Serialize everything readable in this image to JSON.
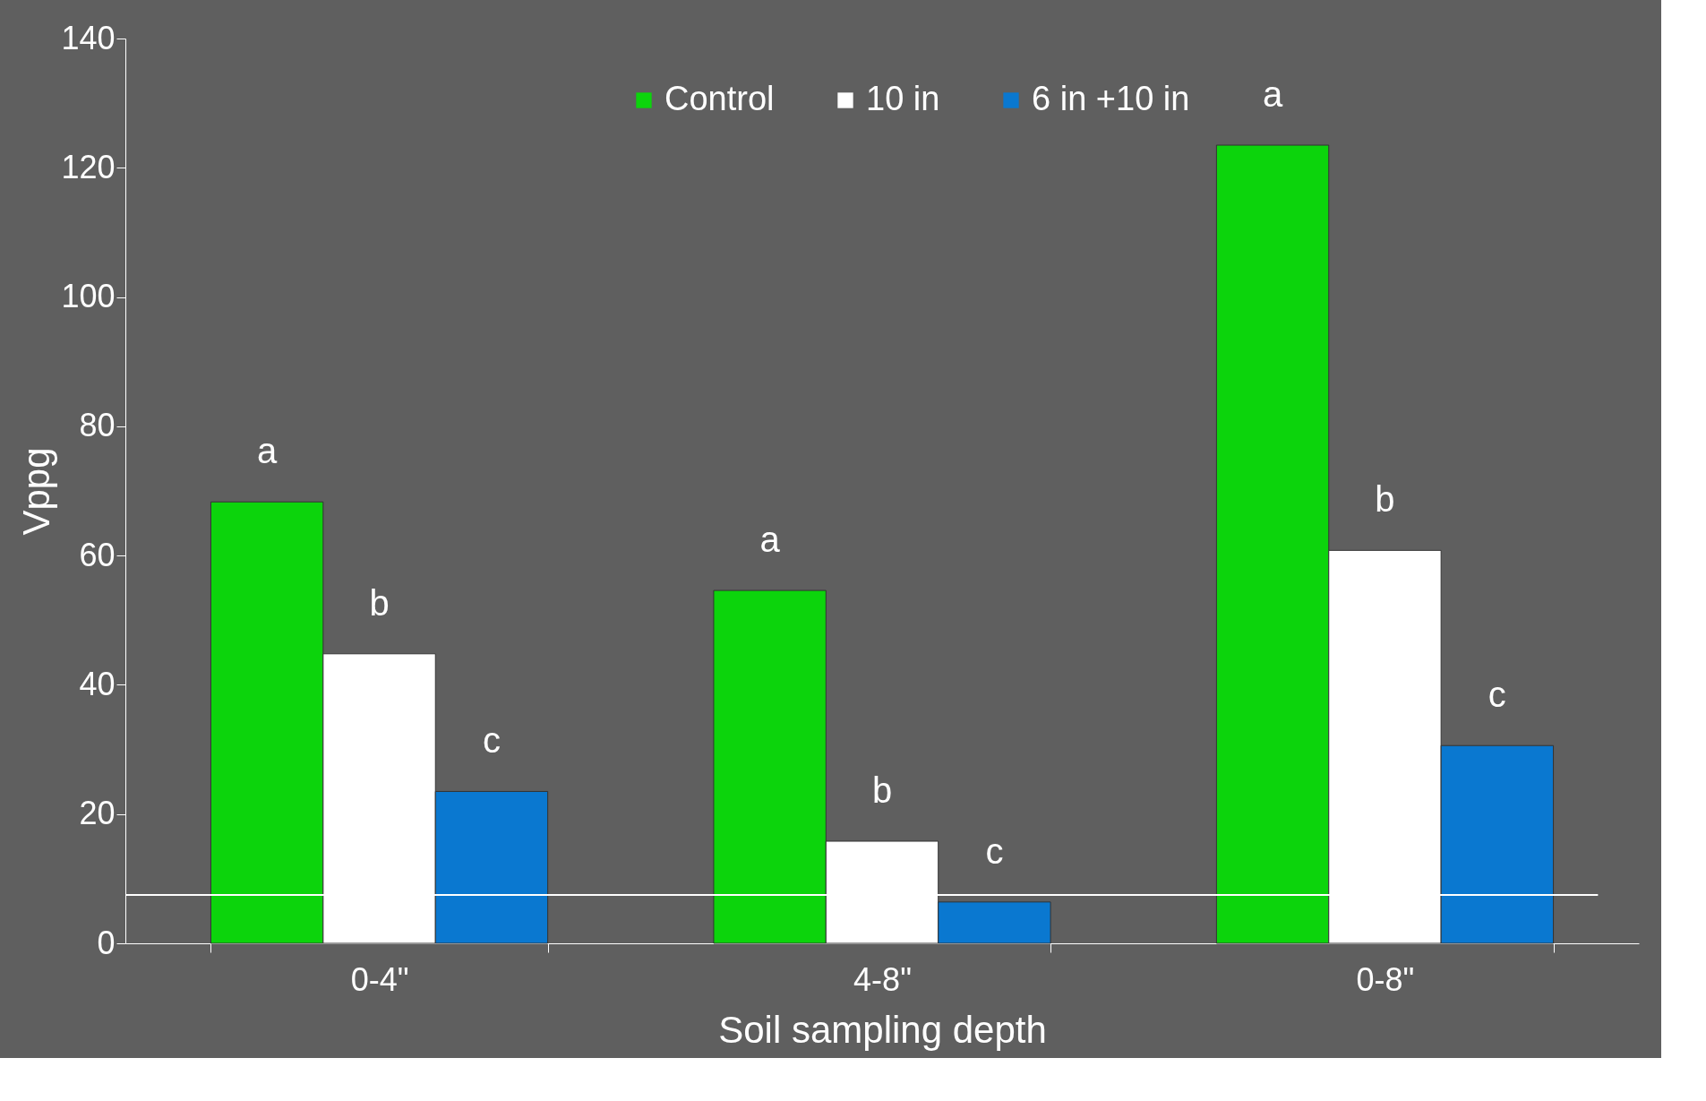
{
  "chart_data": {
    "type": "bar",
    "xlabel": "Soil sampling depth",
    "ylabel": "Vppg",
    "categories": [
      "0-4\"",
      "4-8\"",
      "0-8\""
    ],
    "series": [
      {
        "name": "Control",
        "color": "#0cd40c",
        "values": [
          68.3,
          54.6,
          123.5
        ]
      },
      {
        "name": "10 in",
        "color": "#ffffff",
        "values": [
          44.8,
          15.8,
          60.8
        ]
      },
      {
        "name": "6 in +10 in",
        "color": "#0a78d0",
        "values": [
          23.5,
          6.4,
          30.6
        ]
      }
    ],
    "ylim": [
      0,
      140
    ],
    "yticks": [
      0,
      20,
      40,
      60,
      80,
      100,
      120,
      140
    ],
    "grid": false,
    "legend": "top",
    "ref_lines": [
      {
        "axis": "y",
        "value": 7.5,
        "color": "#ffffff"
      }
    ],
    "annotations": [
      "a",
      "b",
      "c",
      "a",
      "b",
      "c",
      "a",
      "b",
      "c"
    ]
  }
}
